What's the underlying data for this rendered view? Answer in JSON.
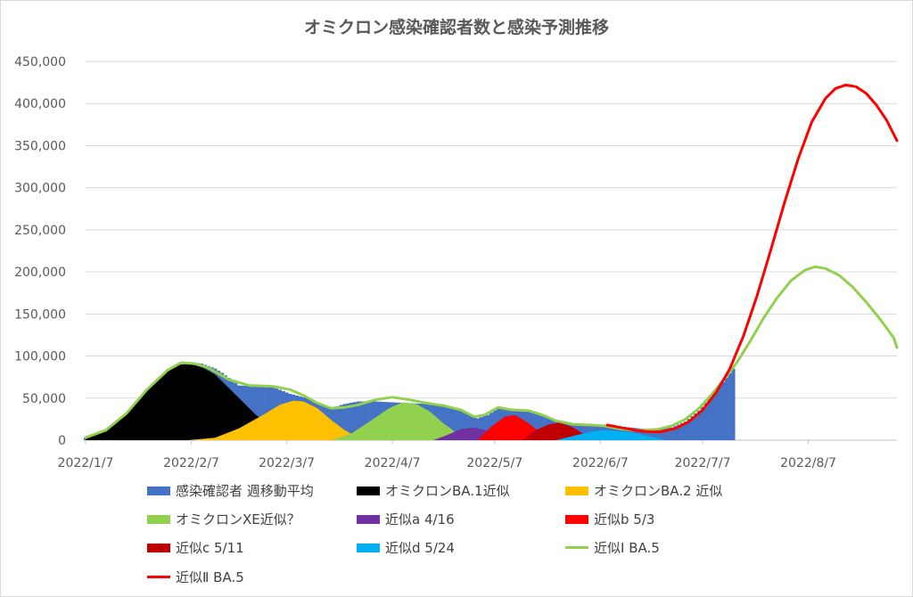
{
  "chart_data": {
    "type": "area",
    "title": "オミクロン感染確認者数と感染予測推移",
    "yticks": [
      "0",
      "50,000",
      "100,000",
      "150,000",
      "200,000",
      "250,000",
      "300,000",
      "350,000",
      "400,000",
      "450,000"
    ],
    "ylim": [
      0,
      450000
    ],
    "xticks": [
      "2022/1/7",
      "2022/2/7",
      "2022/3/7",
      "2022/4/7",
      "2022/5/7",
      "2022/6/7",
      "2022/7/7",
      "2022/8/7"
    ],
    "xtick_days": [
      0,
      31,
      59,
      90,
      120,
      151,
      181,
      212
    ],
    "xlim_days": [
      0,
      238
    ],
    "gridlines": true,
    "legend_position": "bottom",
    "series": [
      {
        "name": "感染確認者 週移動平均",
        "kind": "bar",
        "color": "#4472c4",
        "points": [
          [
            0,
            3000
          ],
          [
            6,
            12000
          ],
          [
            12,
            32000
          ],
          [
            18,
            60000
          ],
          [
            24,
            83000
          ],
          [
            28,
            90000
          ],
          [
            31,
            92000
          ],
          [
            34,
            91000
          ],
          [
            38,
            85000
          ],
          [
            40,
            80000
          ],
          [
            42,
            74000
          ],
          [
            45,
            65000
          ],
          [
            50,
            64000
          ],
          [
            55,
            63000
          ],
          [
            60,
            55000
          ],
          [
            65,
            50000
          ],
          [
            69,
            42000
          ],
          [
            72,
            38000
          ],
          [
            76,
            43000
          ],
          [
            80,
            46000
          ],
          [
            85,
            46000
          ],
          [
            90,
            45000
          ],
          [
            95,
            44000
          ],
          [
            100,
            43000
          ],
          [
            105,
            41000
          ],
          [
            110,
            37000
          ],
          [
            115,
            26000
          ],
          [
            118,
            30000
          ],
          [
            121,
            38000
          ],
          [
            125,
            36000
          ],
          [
            130,
            36000
          ],
          [
            135,
            27000
          ],
          [
            140,
            21000
          ],
          [
            147,
            18000
          ],
          [
            155,
            17000
          ],
          [
            165,
            13000
          ],
          [
            172,
            15000
          ],
          [
            176,
            22000
          ],
          [
            180,
            35000
          ],
          [
            185,
            58000
          ],
          [
            190,
            85000
          ]
        ]
      },
      {
        "name": "オミクロンBA.1近似",
        "kind": "area",
        "color": "#000000",
        "points": [
          [
            0,
            3000
          ],
          [
            6,
            12000
          ],
          [
            12,
            32000
          ],
          [
            18,
            60000
          ],
          [
            24,
            83000
          ],
          [
            28,
            90000
          ],
          [
            31,
            90000
          ],
          [
            34,
            87000
          ],
          [
            38,
            78000
          ],
          [
            42,
            62000
          ],
          [
            46,
            46000
          ],
          [
            50,
            30000
          ],
          [
            54,
            18000
          ],
          [
            58,
            9000
          ],
          [
            62,
            3000
          ],
          [
            66,
            0
          ]
        ]
      },
      {
        "name": "オミクロンBA.2 近似",
        "kind": "area",
        "color": "#ffc000",
        "points": [
          [
            30,
            0
          ],
          [
            38,
            3000
          ],
          [
            45,
            14000
          ],
          [
            52,
            30000
          ],
          [
            57,
            42000
          ],
          [
            61,
            47000
          ],
          [
            64,
            46000
          ],
          [
            68,
            38000
          ],
          [
            72,
            24000
          ],
          [
            76,
            12000
          ],
          [
            80,
            3000
          ],
          [
            84,
            0
          ]
        ]
      },
      {
        "name": "オミクロンXE近似？",
        "kind": "area",
        "color": "#92d050",
        "points": [
          [
            72,
            0
          ],
          [
            78,
            8000
          ],
          [
            84,
            24000
          ],
          [
            89,
            38000
          ],
          [
            93,
            45000
          ],
          [
            97,
            43000
          ],
          [
            101,
            34000
          ],
          [
            105,
            20000
          ],
          [
            109,
            8000
          ],
          [
            113,
            0
          ]
        ]
      },
      {
        "name": "近似a 4/16",
        "kind": "area",
        "color": "#7030a0",
        "points": [
          [
            102,
            0
          ],
          [
            106,
            6000
          ],
          [
            110,
            13000
          ],
          [
            114,
            15000
          ],
          [
            118,
            11000
          ],
          [
            121,
            4000
          ],
          [
            123,
            0
          ]
        ]
      },
      {
        "name": "近似b 5/3",
        "kind": "area",
        "color": "#ff0000",
        "points": [
          [
            115,
            0
          ],
          [
            119,
            16000
          ],
          [
            123,
            28000
          ],
          [
            126,
            30000
          ],
          [
            130,
            20000
          ],
          [
            134,
            7000
          ],
          [
            136,
            0
          ]
        ]
      },
      {
        "name": "近似c 5/11",
        "kind": "area",
        "color": "#c00000",
        "points": [
          [
            128,
            0
          ],
          [
            132,
            12000
          ],
          [
            136,
            19000
          ],
          [
            139,
            21000
          ],
          [
            143,
            15000
          ],
          [
            147,
            5000
          ],
          [
            150,
            0
          ]
        ]
      },
      {
        "name": "近似d 5/24",
        "kind": "area",
        "color": "#00b0f0",
        "points": [
          [
            138,
            0
          ],
          [
            143,
            5000
          ],
          [
            148,
            10000
          ],
          [
            152,
            12000
          ],
          [
            157,
            11000
          ],
          [
            162,
            8000
          ],
          [
            166,
            4000
          ],
          [
            170,
            0
          ]
        ]
      },
      {
        "name": "近似Ⅰ BA.5",
        "kind": "line",
        "color": "#92d050",
        "points": [
          [
            0,
            3000
          ],
          [
            6,
            12000
          ],
          [
            12,
            32000
          ],
          [
            18,
            60000
          ],
          [
            24,
            83000
          ],
          [
            28,
            92000
          ],
          [
            32,
            91000
          ],
          [
            36,
            86000
          ],
          [
            42,
            72000
          ],
          [
            48,
            65000
          ],
          [
            55,
            64000
          ],
          [
            60,
            60000
          ],
          [
            64,
            53000
          ],
          [
            68,
            44000
          ],
          [
            72,
            38000
          ],
          [
            76,
            39000
          ],
          [
            80,
            42000
          ],
          [
            85,
            48000
          ],
          [
            90,
            51000
          ],
          [
            95,
            48000
          ],
          [
            100,
            44000
          ],
          [
            105,
            41000
          ],
          [
            110,
            36000
          ],
          [
            114,
            28000
          ],
          [
            117,
            30000
          ],
          [
            121,
            39000
          ],
          [
            125,
            36000
          ],
          [
            130,
            35000
          ],
          [
            134,
            30000
          ],
          [
            138,
            23000
          ],
          [
            143,
            19000
          ],
          [
            148,
            18000
          ],
          [
            152,
            17000
          ],
          [
            156,
            14000
          ],
          [
            160,
            12000
          ],
          [
            164,
            12000
          ],
          [
            168,
            13000
          ],
          [
            172,
            17000
          ],
          [
            176,
            25000
          ],
          [
            180,
            38000
          ],
          [
            184,
            56000
          ],
          [
            188,
            76000
          ],
          [
            191,
            92000
          ],
          [
            195,
            118000
          ],
          [
            199,
            146000
          ],
          [
            203,
            170000
          ],
          [
            207,
            190000
          ],
          [
            211,
            202000
          ],
          [
            214,
            206000
          ],
          [
            217,
            204000
          ],
          [
            221,
            196000
          ],
          [
            225,
            182000
          ],
          [
            229,
            164000
          ],
          [
            233,
            144000
          ],
          [
            237,
            122000
          ],
          [
            240,
            110000
          ]
        ]
      },
      {
        "name": "近似Ⅱ BA.5",
        "kind": "line",
        "color": "#ff0000",
        "points": [
          [
            153,
            18000
          ],
          [
            157,
            15000
          ],
          [
            161,
            12000
          ],
          [
            165,
            10000
          ],
          [
            169,
            10000
          ],
          [
            173,
            14000
          ],
          [
            177,
            22000
          ],
          [
            181,
            36000
          ],
          [
            185,
            57000
          ],
          [
            189,
            85000
          ],
          [
            193,
            124000
          ],
          [
            197,
            172000
          ],
          [
            201,
            226000
          ],
          [
            205,
            282000
          ],
          [
            209,
            334000
          ],
          [
            213,
            378000
          ],
          [
            217,
            406000
          ],
          [
            220,
            418000
          ],
          [
            223,
            422000
          ],
          [
            226,
            420000
          ],
          [
            229,
            412000
          ],
          [
            232,
            398000
          ],
          [
            235,
            380000
          ],
          [
            238,
            356000
          ]
        ]
      }
    ]
  }
}
